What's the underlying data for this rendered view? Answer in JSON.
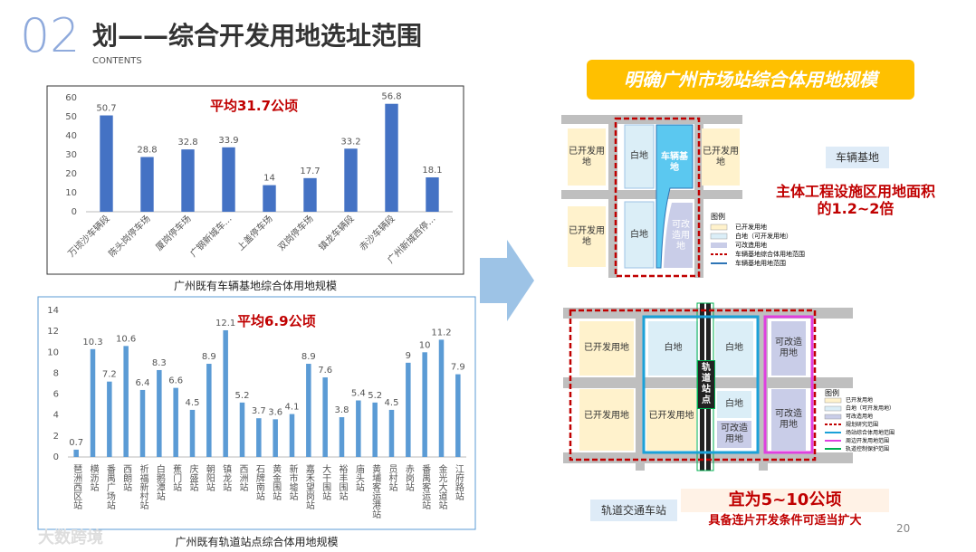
{
  "header": {
    "number": "02",
    "title": "划——综合开发用地选址范围",
    "subtitle": "CONTENTS"
  },
  "chart_data": [
    {
      "type": "bar",
      "title": "广州既有车辆基地综合体用地规模",
      "annotation": "平均31.7公顷",
      "color": "#4472c4",
      "categories": [
        "万顷沙车辆段",
        "陈头岗停车场",
        "厦岗停车场",
        "广钢新城车…",
        "上盖停车场",
        "双岗停车场",
        "镇龙车辆段",
        "赤沙车辆段",
        "广州新城西停…"
      ],
      "values": [
        50.7,
        28.8,
        32.8,
        33.9,
        14,
        17.7,
        33.2,
        56.8,
        18.1
      ],
      "ylim": [
        0,
        60
      ],
      "yticks": [
        0,
        10,
        20,
        30,
        40,
        50,
        60
      ],
      "grid": false
    },
    {
      "type": "bar",
      "title": "广州既有轨道站点综合体用地规模",
      "annotation": "平均6.9公顷",
      "color": "#5b9bd5",
      "categories": [
        "琶洲西区站",
        "横沥站",
        "番禺广场站",
        "西朗站",
        "祈福新村站",
        "白鹅潭站",
        "蕉门站",
        "庆盛站",
        "朝阳站",
        "镇龙站",
        "西洲站",
        "石牌南站",
        "黄金围站",
        "新市墟站",
        "嘉禾望岗站",
        "大干围站",
        "裕丰围站",
        "庙头站",
        "黄埔客运港站",
        "员村站",
        "赤岗站",
        "番禺客运站",
        "金光大道站",
        "江府路站"
      ],
      "values": [
        0.7,
        10.3,
        7.2,
        10.6,
        6.4,
        8.3,
        6.6,
        4.5,
        8.9,
        12.1,
        5.2,
        3.7,
        3.6,
        4.1,
        8.9,
        7.6,
        3.8,
        5.4,
        5.2,
        4.5,
        9,
        10,
        11.2,
        7.9
      ],
      "ylim": [
        0,
        14
      ],
      "yticks": [
        0,
        2,
        4,
        6,
        8,
        10,
        12,
        14
      ],
      "grid": false
    }
  ],
  "banner": "明确广州市场站综合体用地规模",
  "depot": {
    "blocks": [
      "已开发用地",
      "白地",
      "车辆基地",
      "已开发用地",
      "已开发用地",
      "白地",
      "可改造用地"
    ],
    "legend_title": "图例",
    "legend": [
      "已开发用地",
      "白地（可开发用地）",
      "可改造用地",
      "车辆基地综合体用地范围",
      "车辆基地用地范围"
    ],
    "tag": "车辆基地",
    "note": "主体工程设施区用地面积的1.2~2倍"
  },
  "station": {
    "blocks": [
      "已开发用地",
      "白地",
      "白地",
      "可改造用地",
      "已开发用地",
      "已开发用地",
      "白地",
      "可改造用地",
      "可改造用地",
      "轨道站点"
    ],
    "legend_title": "图例",
    "legend": [
      "已开发用地",
      "白地（可开发用地）",
      "可改造用地",
      "规划研究范围",
      "场站综合体用地范围",
      "周边开发用地范围",
      "轨道控制保护范围"
    ],
    "tag": "轨道交通车站",
    "note": "宜为5~10公顷",
    "note2": "具备连片开发条件可适当扩大"
  },
  "page_number": "20",
  "watermark": "大数跨境"
}
